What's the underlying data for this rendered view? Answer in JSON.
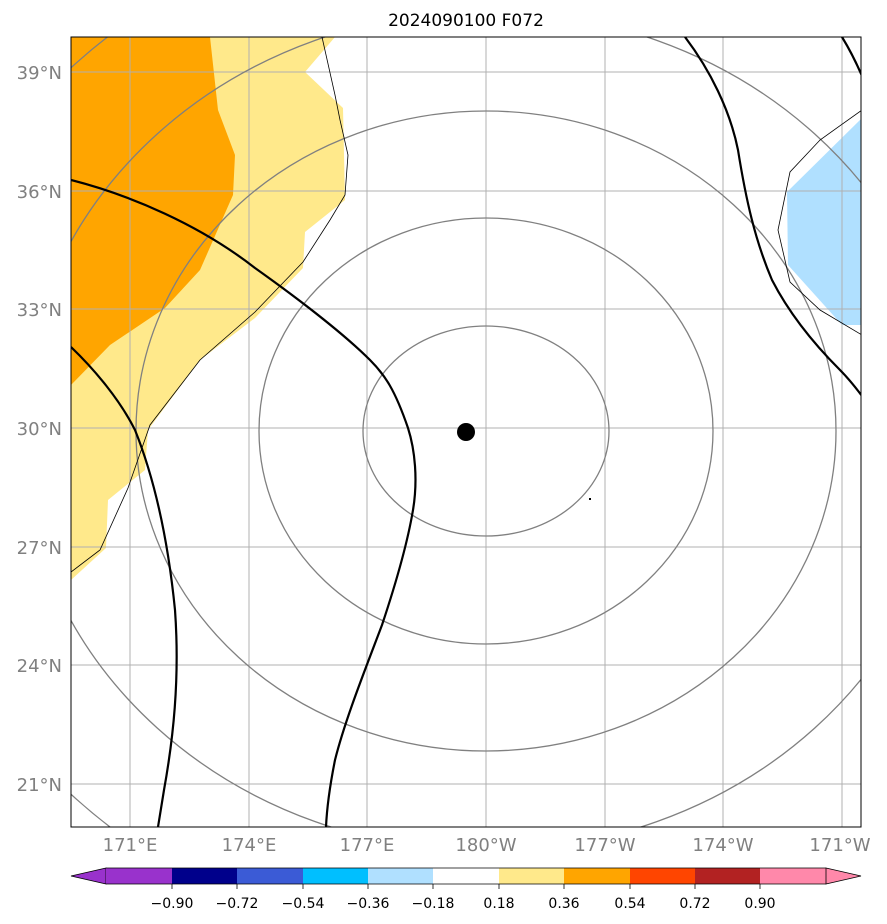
{
  "title": "2024090100 F072",
  "map": {
    "lat_labels": [
      "39°N",
      "36°N",
      "33°N",
      "30°N",
      "27°N",
      "24°N",
      "21°N"
    ],
    "lon_labels": [
      "171°E",
      "174°E",
      "177°E",
      "180°W",
      "177°W",
      "174°W",
      "171°W"
    ],
    "center_marker": "storm-center-dot",
    "colors": {
      "orange_fill": "#ffa500",
      "yellow_fill": "#ffe98b",
      "lightblue_fill": "#b0e0ff",
      "gridline": "#b0b0b0",
      "range_ring": "#808080",
      "contour": "#000000"
    }
  },
  "colorbar": {
    "ticks": [
      "−0.90",
      "−0.72",
      "−0.54",
      "−0.36",
      "−0.18",
      "0.18",
      "0.36",
      "0.54",
      "0.72",
      "0.90"
    ],
    "colors": [
      "#9932cc",
      "#00008b",
      "#3b5bd6",
      "#00bfff",
      "#b0e0ff",
      "#ffffff",
      "#ffe98b",
      "#ffa500",
      "#ff4500",
      "#b22222",
      "#ff88aa"
    ],
    "extend": "both"
  }
}
